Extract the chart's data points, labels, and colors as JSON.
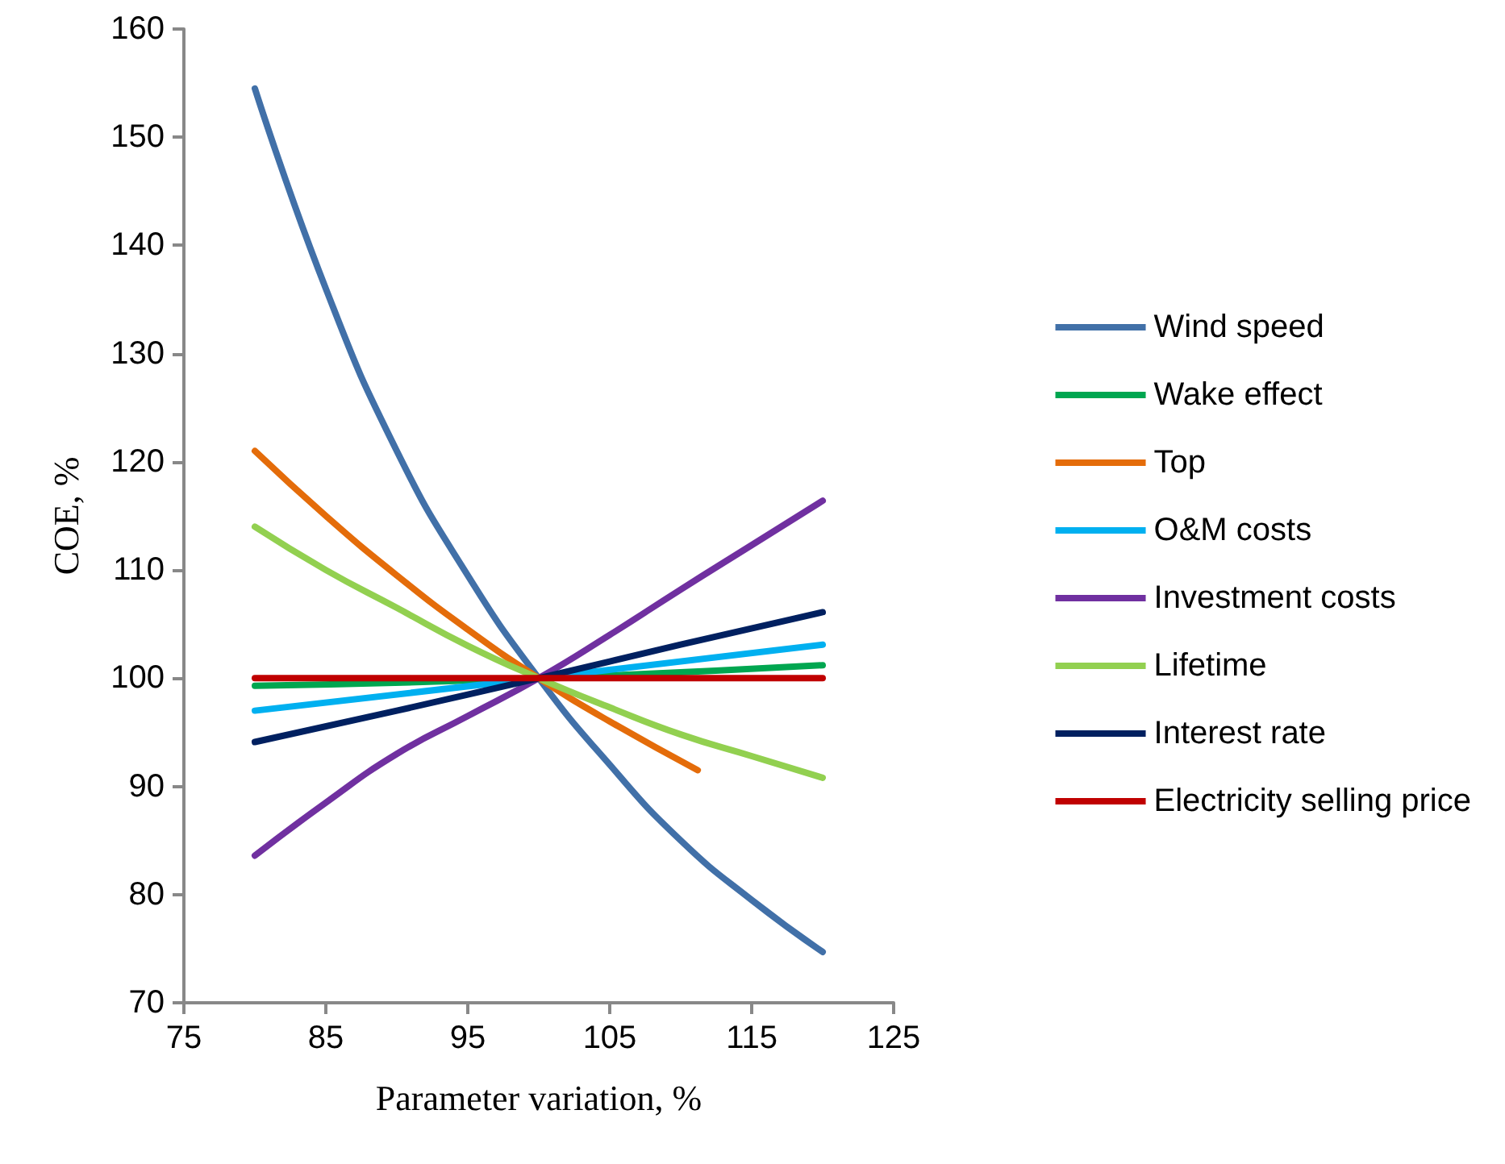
{
  "chart_data": {
    "type": "line",
    "xlabel": "Parameter variation, %",
    "ylabel": "COE, %",
    "xlim": [
      75,
      125
    ],
    "xticks": [
      75,
      85,
      95,
      105,
      115,
      125
    ],
    "ylim": [
      70,
      160
    ],
    "yticks": [
      70,
      80,
      90,
      100,
      110,
      120,
      130,
      140,
      150,
      160
    ],
    "grid": false,
    "legend": "right",
    "marker": "none",
    "line_style": "solid",
    "series": [
      {
        "name": "Wind speed",
        "color": "#4170a8",
        "x": [
          80,
          85,
          90,
          95,
          100,
          105,
          110,
          115,
          120
        ],
        "values": [
          154.5,
          136,
          121,
          109.5,
          100,
          92,
          85,
          79.5,
          74.7
        ]
      },
      {
        "name": "Wake effect",
        "color": "#00a650",
        "x": [
          80,
          100,
          120
        ],
        "values": [
          99.3,
          100,
          101.2
        ]
      },
      {
        "name": "Top",
        "color": "#e46c0a",
        "x": [
          80,
          85,
          90,
          95,
          100,
          105,
          111.2
        ],
        "values": [
          121,
          115,
          109.5,
          104.5,
          100,
          96,
          91.5
        ]
      },
      {
        "name": "O&M costs",
        "color": "#00b0f0",
        "x": [
          80,
          100,
          120
        ],
        "values": [
          97,
          100,
          103.1
        ]
      },
      {
        "name": "Investment costs",
        "color": "#7030a0",
        "x": [
          80,
          85,
          90,
          95,
          100,
          105,
          110,
          115,
          120
        ],
        "values": [
          83.6,
          88.5,
          93,
          96.5,
          100,
          104,
          108.2,
          112.3,
          116.4
        ]
      },
      {
        "name": "Lifetime",
        "color": "#92d050",
        "x": [
          80,
          85,
          90,
          95,
          100,
          105,
          110,
          115,
          120
        ],
        "values": [
          114,
          110,
          106.5,
          103,
          100,
          97.3,
          94.8,
          92.8,
          90.8
        ]
      },
      {
        "name": "Interest rate",
        "color": "#002060",
        "x": [
          80,
          90,
          100,
          110,
          120
        ],
        "values": [
          94.1,
          97,
          100,
          103.1,
          106.1
        ]
      },
      {
        "name": "Electricity selling price",
        "color": "#c00000",
        "x": [
          80,
          100,
          120
        ],
        "values": [
          100,
          100,
          100
        ]
      }
    ]
  }
}
